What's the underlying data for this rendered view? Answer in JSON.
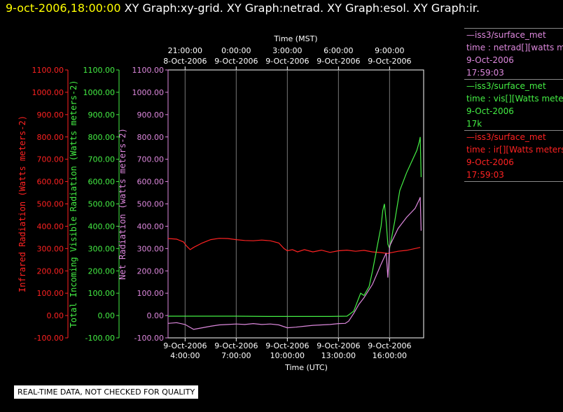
{
  "header": {
    "timestamp": "9-oct-2006,18:00:00",
    "graphs": "XY Graph:xy-grid.  XY Graph:netrad.  XY Graph:esol.  XY Graph:ir."
  },
  "legend": [
    {
      "color": "#dd88dd",
      "lines": [
        "—iss3/surface_met",
        "time : netrad[][watts me",
        "9-Oct-2006",
        "17:59:03"
      ]
    },
    {
      "color": "#44ee44",
      "lines": [
        "—iss3/surface_met",
        "time : vis[][Watts meter",
        "9-Oct-2006",
        "17k"
      ]
    },
    {
      "color": "#ff2222",
      "lines": [
        "—iss3/surface_met",
        "time : ir[][Watts meters",
        "9-Oct-2006",
        "17:59:03"
      ]
    }
  ],
  "quality_note": "REAL-TIME DATA, NOT CHECKED FOR QUALITY",
  "chart_data": {
    "type": "line",
    "x_top_label": "Time (MST)",
    "x_bottom_label": "Time (UTC)",
    "x_range_utc_hours": [
      3,
      18
    ],
    "bottom_ticks": [
      {
        "date": "9-Oct-2006",
        "time": "4:00:00",
        "hour": 4
      },
      {
        "date": "9-Oct-2006",
        "time": "7:00:00",
        "hour": 7
      },
      {
        "date": "9-Oct-2006",
        "time": "10:00:00",
        "hour": 10
      },
      {
        "date": "9-Oct-2006",
        "time": "13:00:00",
        "hour": 13
      },
      {
        "date": "9-Oct-2006",
        "time": "16:00:00",
        "hour": 16
      }
    ],
    "top_ticks": [
      {
        "time": "21:00:00",
        "date": "8-Oct-2006",
        "hour": 4
      },
      {
        "time": "0:00:00",
        "date": "9-Oct-2006",
        "hour": 7
      },
      {
        "time": "3:00:00",
        "date": "9-Oct-2006",
        "hour": 10
      },
      {
        "time": "6:00:00",
        "date": "9-Oct-2006",
        "hour": 13
      },
      {
        "time": "9:00:00",
        "date": "9-Oct-2006",
        "hour": 16
      }
    ],
    "y_range": [
      -100,
      1100
    ],
    "y_ticks": [
      "-100.00",
      "0.00",
      "100.00",
      "200.00",
      "300.00",
      "400.00",
      "500.00",
      "600.00",
      "700.00",
      "800.00",
      "900.00",
      "1000.00",
      "1100.00"
    ],
    "grid": true,
    "axes": [
      {
        "name": "Infrared Radiation (Watts meters-2)",
        "color": "#ff2222"
      },
      {
        "name": "Total Incoming Visible Radiation (Watts meters-2)",
        "color": "#44ee44"
      },
      {
        "name": "Net Radiation (watts meters-2)",
        "color": "#dd88dd"
      }
    ],
    "series": [
      {
        "name": "ir",
        "color": "#ff2222",
        "x": [
          3.0,
          3.5,
          3.9,
          4.1,
          4.3,
          4.5,
          5.0,
          5.5,
          6.0,
          6.5,
          7.0,
          7.5,
          8.0,
          8.5,
          9.0,
          9.5,
          9.8,
          10.0,
          10.3,
          10.6,
          11.0,
          11.5,
          12.0,
          12.5,
          13.0,
          13.5,
          14.0,
          14.5,
          15.0,
          15.5,
          15.9,
          16.0,
          16.5,
          17.0,
          17.5,
          17.8
        ],
        "y": [
          345,
          342,
          330,
          310,
          295,
          305,
          325,
          340,
          346,
          345,
          340,
          336,
          335,
          338,
          335,
          325,
          300,
          290,
          295,
          285,
          295,
          285,
          293,
          283,
          290,
          293,
          288,
          292,
          285,
          282,
          278,
          280,
          288,
          292,
          300,
          305
        ]
      },
      {
        "name": "vis",
        "color": "#44ee44",
        "x": [
          3.0,
          5.0,
          7.0,
          9.0,
          11.0,
          12.5,
          13.5,
          13.9,
          14.1,
          14.3,
          14.5,
          14.8,
          15.0,
          15.2,
          15.5,
          15.6,
          15.7,
          15.8,
          15.9,
          16.0,
          16.3,
          16.6,
          17.0,
          17.3,
          17.6,
          17.75,
          17.8,
          17.85
        ],
        "y": [
          -3,
          -3,
          -3,
          -4,
          -4,
          -4,
          -3,
          20,
          60,
          100,
          90,
          130,
          200,
          280,
          400,
          470,
          500,
          420,
          320,
          300,
          420,
          560,
          640,
          690,
          740,
          780,
          800,
          620
        ]
      },
      {
        "name": "netrad",
        "color": "#dd88dd",
        "x": [
          3.0,
          3.5,
          4.0,
          4.5,
          5.0,
          5.5,
          6.0,
          6.5,
          7.0,
          7.5,
          8.0,
          8.5,
          9.0,
          9.5,
          10.0,
          10.5,
          11.0,
          11.5,
          12.0,
          12.5,
          13.0,
          13.4,
          13.6,
          13.9,
          14.2,
          14.5,
          15.0,
          15.5,
          15.8,
          15.9,
          16.0,
          16.5,
          17.0,
          17.5,
          17.75,
          17.8,
          17.85
        ],
        "y": [
          -35,
          -32,
          -40,
          -62,
          -55,
          -48,
          -42,
          -40,
          -38,
          -40,
          -36,
          -40,
          -38,
          -42,
          -55,
          -52,
          -48,
          -44,
          -42,
          -40,
          -36,
          -35,
          -25,
          10,
          50,
          80,
          140,
          230,
          280,
          170,
          310,
          390,
          440,
          480,
          520,
          530,
          380
        ]
      }
    ]
  }
}
